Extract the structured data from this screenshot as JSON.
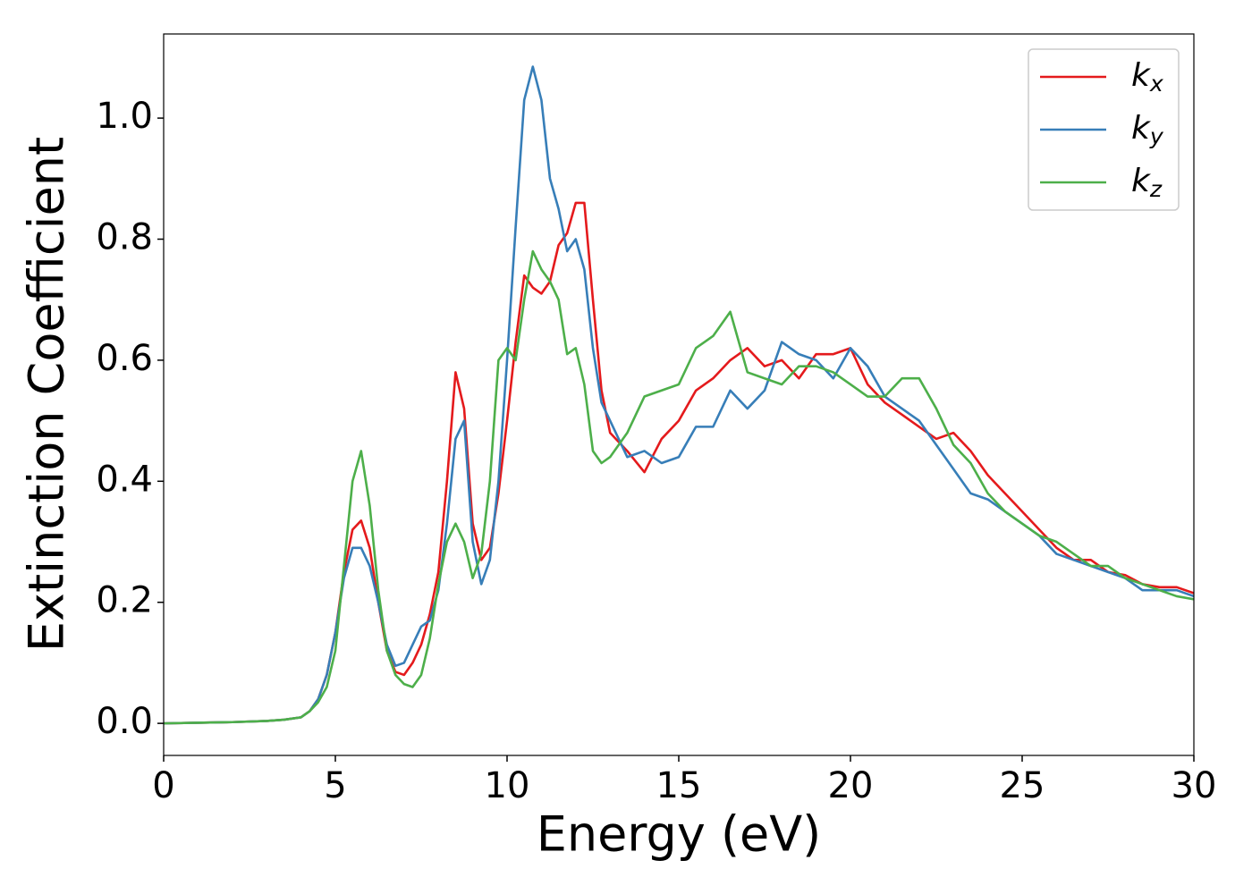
{
  "chart_data": {
    "type": "line",
    "xlabel": "Energy (eV)",
    "ylabel": "Extinction Coefficient",
    "x": [
      0,
      1,
      2,
      3,
      3.5,
      4,
      4.25,
      4.5,
      4.75,
      5,
      5.25,
      5.5,
      5.75,
      6,
      6.25,
      6.5,
      6.75,
      7,
      7.25,
      7.5,
      7.75,
      8,
      8.25,
      8.5,
      8.75,
      9,
      9.25,
      9.5,
      9.75,
      10,
      10.25,
      10.5,
      10.75,
      11,
      11.25,
      11.5,
      11.75,
      12,
      12.25,
      12.5,
      12.75,
      13,
      13.5,
      14,
      14.5,
      15,
      15.5,
      16,
      16.5,
      17,
      17.5,
      18,
      18.5,
      19,
      19.5,
      20,
      20.5,
      21,
      21.5,
      22,
      22.5,
      23,
      23.5,
      24,
      24.5,
      25,
      25.5,
      26,
      26.5,
      27,
      27.5,
      28,
      28.5,
      29,
      29.5,
      30
    ],
    "series": [
      {
        "name": "k_x",
        "color": "#e41a1c",
        "values": [
          0,
          0.001,
          0.002,
          0.004,
          0.006,
          0.01,
          0.02,
          0.04,
          0.08,
          0.15,
          0.25,
          0.32,
          0.335,
          0.29,
          0.2,
          0.12,
          0.085,
          0.08,
          0.1,
          0.13,
          0.18,
          0.25,
          0.4,
          0.58,
          0.52,
          0.33,
          0.27,
          0.29,
          0.38,
          0.5,
          0.63,
          0.74,
          0.72,
          0.71,
          0.73,
          0.79,
          0.81,
          0.86,
          0.86,
          0.7,
          0.55,
          0.48,
          0.45,
          0.415,
          0.47,
          0.5,
          0.55,
          0.57,
          0.6,
          0.62,
          0.59,
          0.6,
          0.57,
          0.61,
          0.61,
          0.62,
          0.56,
          0.53,
          0.51,
          0.49,
          0.47,
          0.48,
          0.45,
          0.41,
          0.38,
          0.35,
          0.32,
          0.29,
          0.27,
          0.27,
          0.25,
          0.245,
          0.23,
          0.225,
          0.225,
          0.215
        ]
      },
      {
        "name": "k_y",
        "color": "#377eb8",
        "values": [
          0,
          0.001,
          0.002,
          0.004,
          0.006,
          0.01,
          0.02,
          0.04,
          0.08,
          0.15,
          0.24,
          0.29,
          0.29,
          0.26,
          0.2,
          0.13,
          0.095,
          0.1,
          0.13,
          0.16,
          0.17,
          0.22,
          0.33,
          0.47,
          0.5,
          0.3,
          0.23,
          0.27,
          0.4,
          0.6,
          0.82,
          1.03,
          1.085,
          1.03,
          0.9,
          0.85,
          0.78,
          0.8,
          0.75,
          0.62,
          0.53,
          0.5,
          0.44,
          0.45,
          0.43,
          0.44,
          0.49,
          0.49,
          0.55,
          0.52,
          0.55,
          0.63,
          0.61,
          0.6,
          0.57,
          0.62,
          0.59,
          0.54,
          0.52,
          0.5,
          0.46,
          0.42,
          0.38,
          0.37,
          0.35,
          0.33,
          0.31,
          0.28,
          0.27,
          0.26,
          0.25,
          0.24,
          0.22,
          0.22,
          0.22,
          0.21
        ]
      },
      {
        "name": "k_z",
        "color": "#4daf4a",
        "values": [
          0,
          0.001,
          0.002,
          0.004,
          0.006,
          0.01,
          0.02,
          0.035,
          0.06,
          0.12,
          0.26,
          0.4,
          0.45,
          0.36,
          0.22,
          0.12,
          0.08,
          0.065,
          0.06,
          0.08,
          0.14,
          0.23,
          0.3,
          0.33,
          0.3,
          0.24,
          0.28,
          0.4,
          0.6,
          0.62,
          0.6,
          0.7,
          0.78,
          0.75,
          0.73,
          0.7,
          0.61,
          0.62,
          0.56,
          0.45,
          0.43,
          0.44,
          0.48,
          0.54,
          0.55,
          0.56,
          0.62,
          0.64,
          0.68,
          0.58,
          0.57,
          0.56,
          0.59,
          0.59,
          0.58,
          0.56,
          0.54,
          0.54,
          0.57,
          0.57,
          0.52,
          0.46,
          0.43,
          0.38,
          0.35,
          0.33,
          0.31,
          0.3,
          0.28,
          0.26,
          0.26,
          0.24,
          0.23,
          0.22,
          0.21,
          0.205
        ]
      }
    ],
    "xlim": [
      0,
      30
    ],
    "xticks": [
      0,
      5,
      10,
      15,
      20,
      25,
      30
    ],
    "ylim": [
      -0.053,
      1.139
    ],
    "yticks": [
      {
        "value": 0,
        "label": "0.0"
      },
      0.2,
      0.4,
      0.6,
      0.8,
      {
        "value": 1,
        "label": "1.0"
      }
    ],
    "grid": false,
    "legend": "upper right"
  }
}
